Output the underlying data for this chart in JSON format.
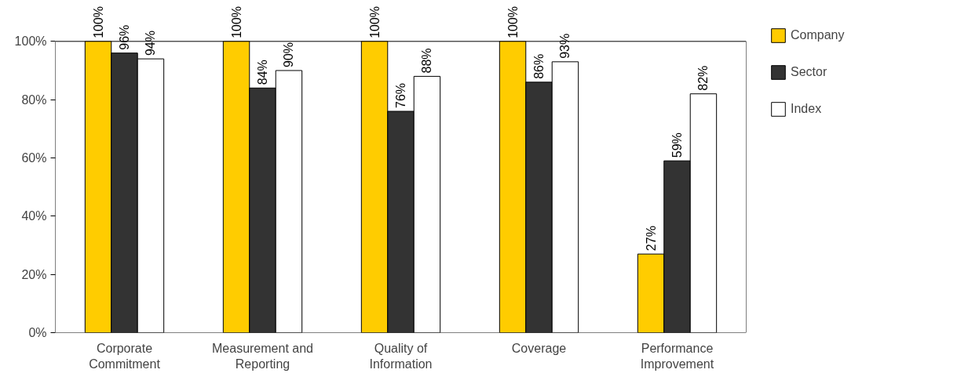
{
  "chart_data": {
    "type": "bar",
    "categories": [
      "Corporate Commitment",
      "Measurement and Reporting",
      "Quality of Information",
      "Coverage",
      "Performance Improvement"
    ],
    "series": [
      {
        "name": "Company",
        "color": "#ffcc00",
        "values": [
          100,
          100,
          100,
          100,
          27
        ],
        "value_labels": [
          "100%",
          "100%",
          "100%",
          "100%",
          "27%"
        ]
      },
      {
        "name": "Sector",
        "color": "#333333",
        "values": [
          96,
          84,
          76,
          86,
          59
        ],
        "value_labels": [
          "96%",
          "84%",
          "76%",
          "86%",
          "59%"
        ]
      },
      {
        "name": "Index",
        "color": "#ffffff",
        "values": [
          94,
          90,
          88,
          93,
          82
        ],
        "value_labels": [
          "94%",
          "90%",
          "88%",
          "93%",
          "82%"
        ]
      }
    ],
    "ylim": [
      0,
      100
    ],
    "yticks": [
      {
        "value": 0,
        "label": "0%"
      },
      {
        "value": 20,
        "label": "20%"
      },
      {
        "value": 40,
        "label": "40%"
      },
      {
        "value": 60,
        "label": "60%"
      },
      {
        "value": 80,
        "label": "80%"
      },
      {
        "value": 100,
        "label": "100%"
      }
    ],
    "grid": false,
    "legend": "right"
  }
}
